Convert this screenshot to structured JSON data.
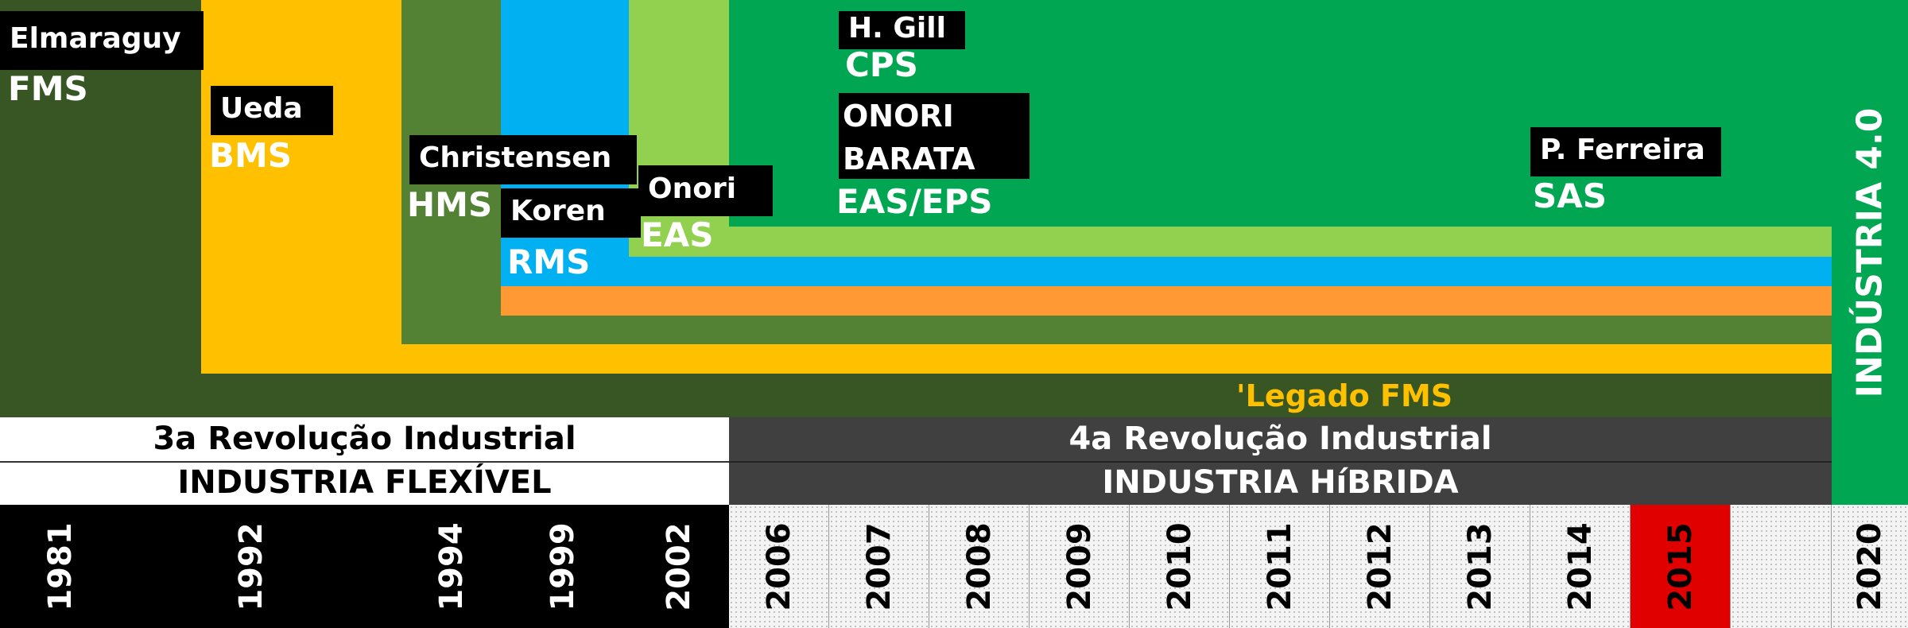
{
  "colors": {
    "fms": "#375623",
    "bms": "#ffc000",
    "hms": "#548235",
    "rms": "#00b0f0",
    "orange": "#ff9933",
    "eas": "#92d050",
    "cps": "#00a651",
    "label_box": "#000000",
    "era_dark": "#404040",
    "highlight": "#e00000",
    "paradigm_white": "#ffffff"
  },
  "authors": {
    "elmaraguy": "Elmaraguy",
    "ueda": "Ueda",
    "christensen": "Christensen",
    "koren": "Koren",
    "onori": "Onori",
    "gill": "H. Gill",
    "onori_barata_1": "ONORI",
    "onori_barata_2": "BARATA",
    "ferreira": "P. Ferreira"
  },
  "paradigms": {
    "fms": "FMS",
    "bms": "BMS",
    "hms": "HMS",
    "rms": "RMS",
    "eas": "EAS",
    "cps": "CPS",
    "eas_eps": "EAS/EPS",
    "sas": "SAS",
    "legacy": "'Legado FMS"
  },
  "industry40": "INDÚSTRIA 4.0",
  "eras": {
    "third_revolution": "3a Revolução Industrial",
    "flexible_industry": "INDUSTRIA FLEXÍVEL",
    "fourth_revolution": "4a Revolução Industrial",
    "hybrid_industry": "INDUSTRIA HíBRIDA"
  },
  "years": [
    "1981",
    "1992",
    "1994",
    "1999",
    "2002",
    "2006",
    "2007",
    "2008",
    "2009",
    "2010",
    "2011",
    "2012",
    "2013",
    "2014",
    "2015",
    "",
    "2020"
  ],
  "highlighted_year": "2015"
}
